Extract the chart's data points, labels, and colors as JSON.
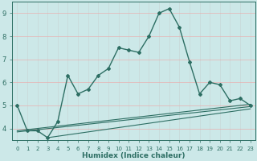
{
  "title": "",
  "xlabel": "Humidex (Indice chaleur)",
  "bg_color": "#cce8e8",
  "line_color": "#2d6e63",
  "grid_color_h": "#e8b0b0",
  "grid_color_v": "#c8d8d8",
  "xlim": [
    -0.5,
    23.5
  ],
  "ylim": [
    3.5,
    9.5
  ],
  "yticks": [
    4,
    5,
    6,
    7,
    8,
    9
  ],
  "xticks": [
    0,
    1,
    2,
    3,
    4,
    5,
    6,
    7,
    8,
    9,
    10,
    11,
    12,
    13,
    14,
    15,
    16,
    17,
    18,
    19,
    20,
    21,
    22,
    23
  ],
  "main_line_x": [
    0,
    1,
    2,
    3,
    4,
    5,
    6,
    7,
    8,
    9,
    10,
    11,
    12,
    13,
    14,
    15,
    16,
    17,
    18,
    19,
    20,
    21,
    22,
    23
  ],
  "main_line_y": [
    5.0,
    3.9,
    3.9,
    3.6,
    4.3,
    6.3,
    5.5,
    5.7,
    6.3,
    6.6,
    7.5,
    7.4,
    7.3,
    8.0,
    9.0,
    9.2,
    8.4,
    6.9,
    5.5,
    6.0,
    5.9,
    5.2,
    5.3,
    5.0
  ],
  "trend1_x": [
    0,
    23
  ],
  "trend1_y": [
    3.9,
    5.05
  ],
  "trend2_x": [
    0,
    23
  ],
  "trend2_y": [
    3.85,
    4.95
  ],
  "trend3_x": [
    3,
    23
  ],
  "trend3_y": [
    3.6,
    4.85
  ]
}
